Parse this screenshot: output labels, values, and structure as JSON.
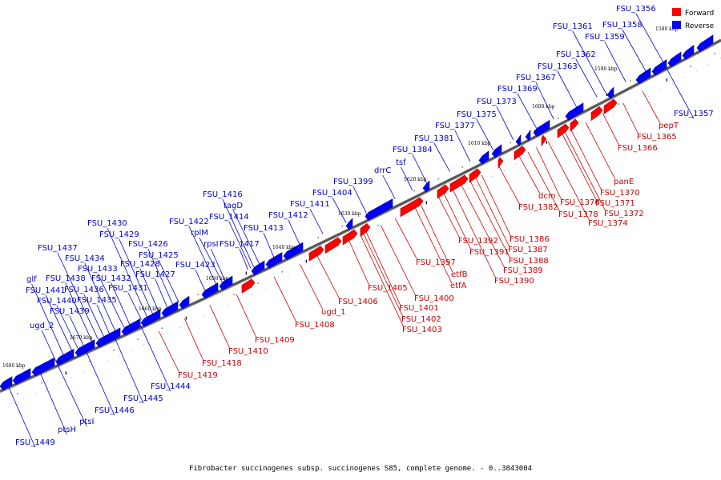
{
  "caption": "Fibrobacter succinogenes subsp. succinogenes S85, complete genome. - 0..3843004",
  "legend": {
    "forward": "Forward",
    "reverse": "Reverse"
  },
  "colors": {
    "forward": "#ff0000",
    "reverse": "#0000ff",
    "backbone": "#555555",
    "background": "#ffffff"
  },
  "ticks": [
    "1580 kbp",
    "1590 kbp",
    "1600 kbp",
    "1610 kbp",
    "1620 kbp",
    "1630 kbp",
    "1640 kbp",
    "1650 kbp",
    "1660 kbp",
    "1670 kbp",
    "1680 kbp"
  ],
  "reverse_labels": [
    "FSU_1356",
    "FSU_1358",
    "FSU_1361",
    "FSU_1359",
    "FSU_1362",
    "FSU_1363",
    "FSU_1357",
    "FSU_1367",
    "FSU_1369",
    "FSU_1373",
    "FSU_1375",
    "FSU_1377",
    "FSU_1381",
    "FSU_1384",
    "tsf",
    "drrC",
    "FSU_1399",
    "FSU_1404",
    "FSU_1416",
    "tagD",
    "FSU_1411",
    "FSU_1414",
    "FSU_1412",
    "FSU_1422",
    "FSU_1413",
    "rplM",
    "rpsI",
    "FSU_1417",
    "FSU_1430",
    "FSU_1429",
    "FSU_1426",
    "FSU_1425",
    "FSU_1437",
    "FSU_1434",
    "FSU_1428",
    "FSU_1423",
    "FSU_1433",
    "FSU_1427",
    "FSU_1432",
    "glf",
    "FSU_1438",
    "FSU_1441",
    "FSU_1436",
    "FSU_1431",
    "FSU_1440",
    "FSU_1435",
    "FSU_1439",
    "ugd_2",
    "FSU_1444",
    "FSU_1445",
    "FSU_1446",
    "ptsI",
    "ptsH",
    "FSU_1449"
  ],
  "forward_labels": [
    "pepT",
    "FSU_1365",
    "FSU_1366",
    "panE",
    "FSU_1370",
    "FSU_1371",
    "FSU_1372",
    "FSU_1374",
    "dcm",
    "FSU_1376",
    "FSU_1378",
    "FSU_1382",
    "FSU_1386",
    "FSU_1387",
    "FSU_1388",
    "FSU_1389",
    "FSU_1390",
    "FSU_1392",
    "FSU_1391",
    "FSU_1397",
    "etfB",
    "etfA",
    "FSU_1400",
    "FSU_1401",
    "FSU_1402",
    "FSU_1403",
    "FSU_1405",
    "FSU_1406",
    "ugd_1",
    "FSU_1408",
    "FSU_1409",
    "FSU_1410",
    "FSU_1418",
    "FSU_1419"
  ]
}
